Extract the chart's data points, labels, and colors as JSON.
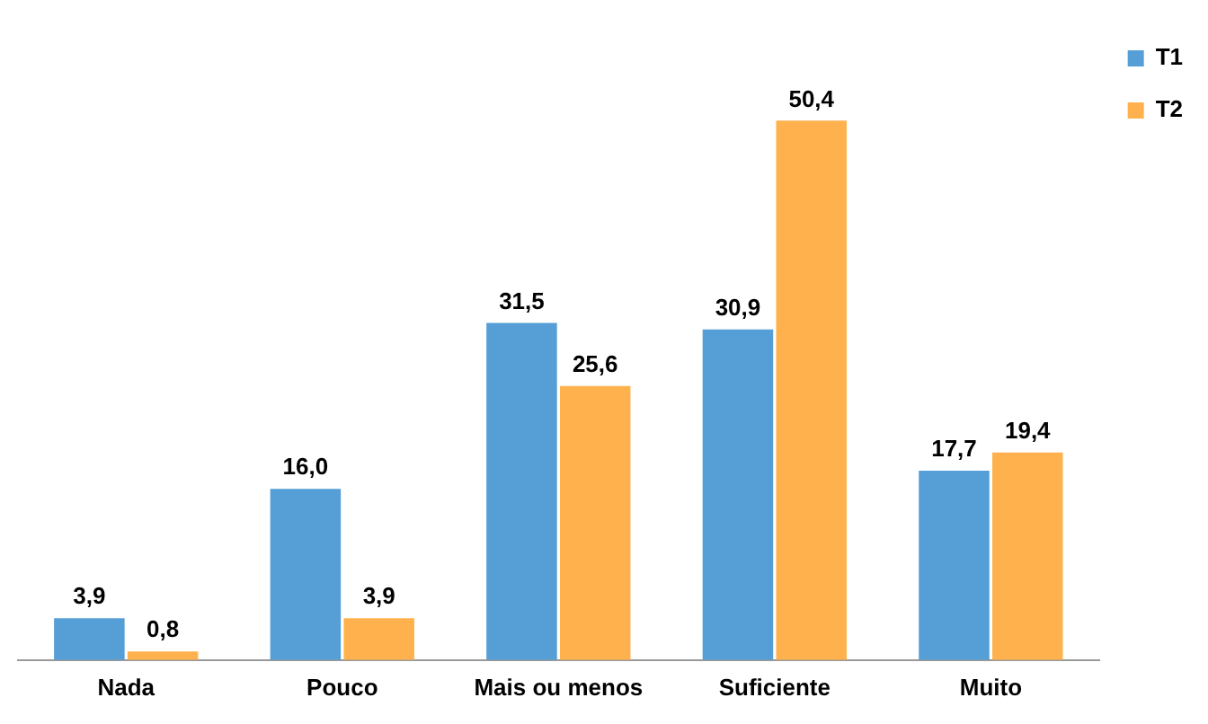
{
  "chart_data": {
    "type": "bar",
    "categories": [
      "Nada",
      "Pouco",
      "Mais ou menos",
      "Suficiente",
      "Muito"
    ],
    "series": [
      {
        "name": "T1",
        "color": "#559fd6",
        "values": [
          3.9,
          16.0,
          31.5,
          30.9,
          17.7
        ],
        "value_labels": [
          "3,9",
          "16,0",
          "31,5",
          "30,9",
          "17,7"
        ]
      },
      {
        "name": "T2",
        "color": "#ffb14e",
        "values": [
          0.8,
          3.9,
          25.6,
          50.4,
          19.4
        ],
        "value_labels": [
          "0,8",
          "3,9",
          "25,6",
          "50,4",
          "19,4"
        ]
      }
    ],
    "legend": "top right",
    "grid": false
  }
}
